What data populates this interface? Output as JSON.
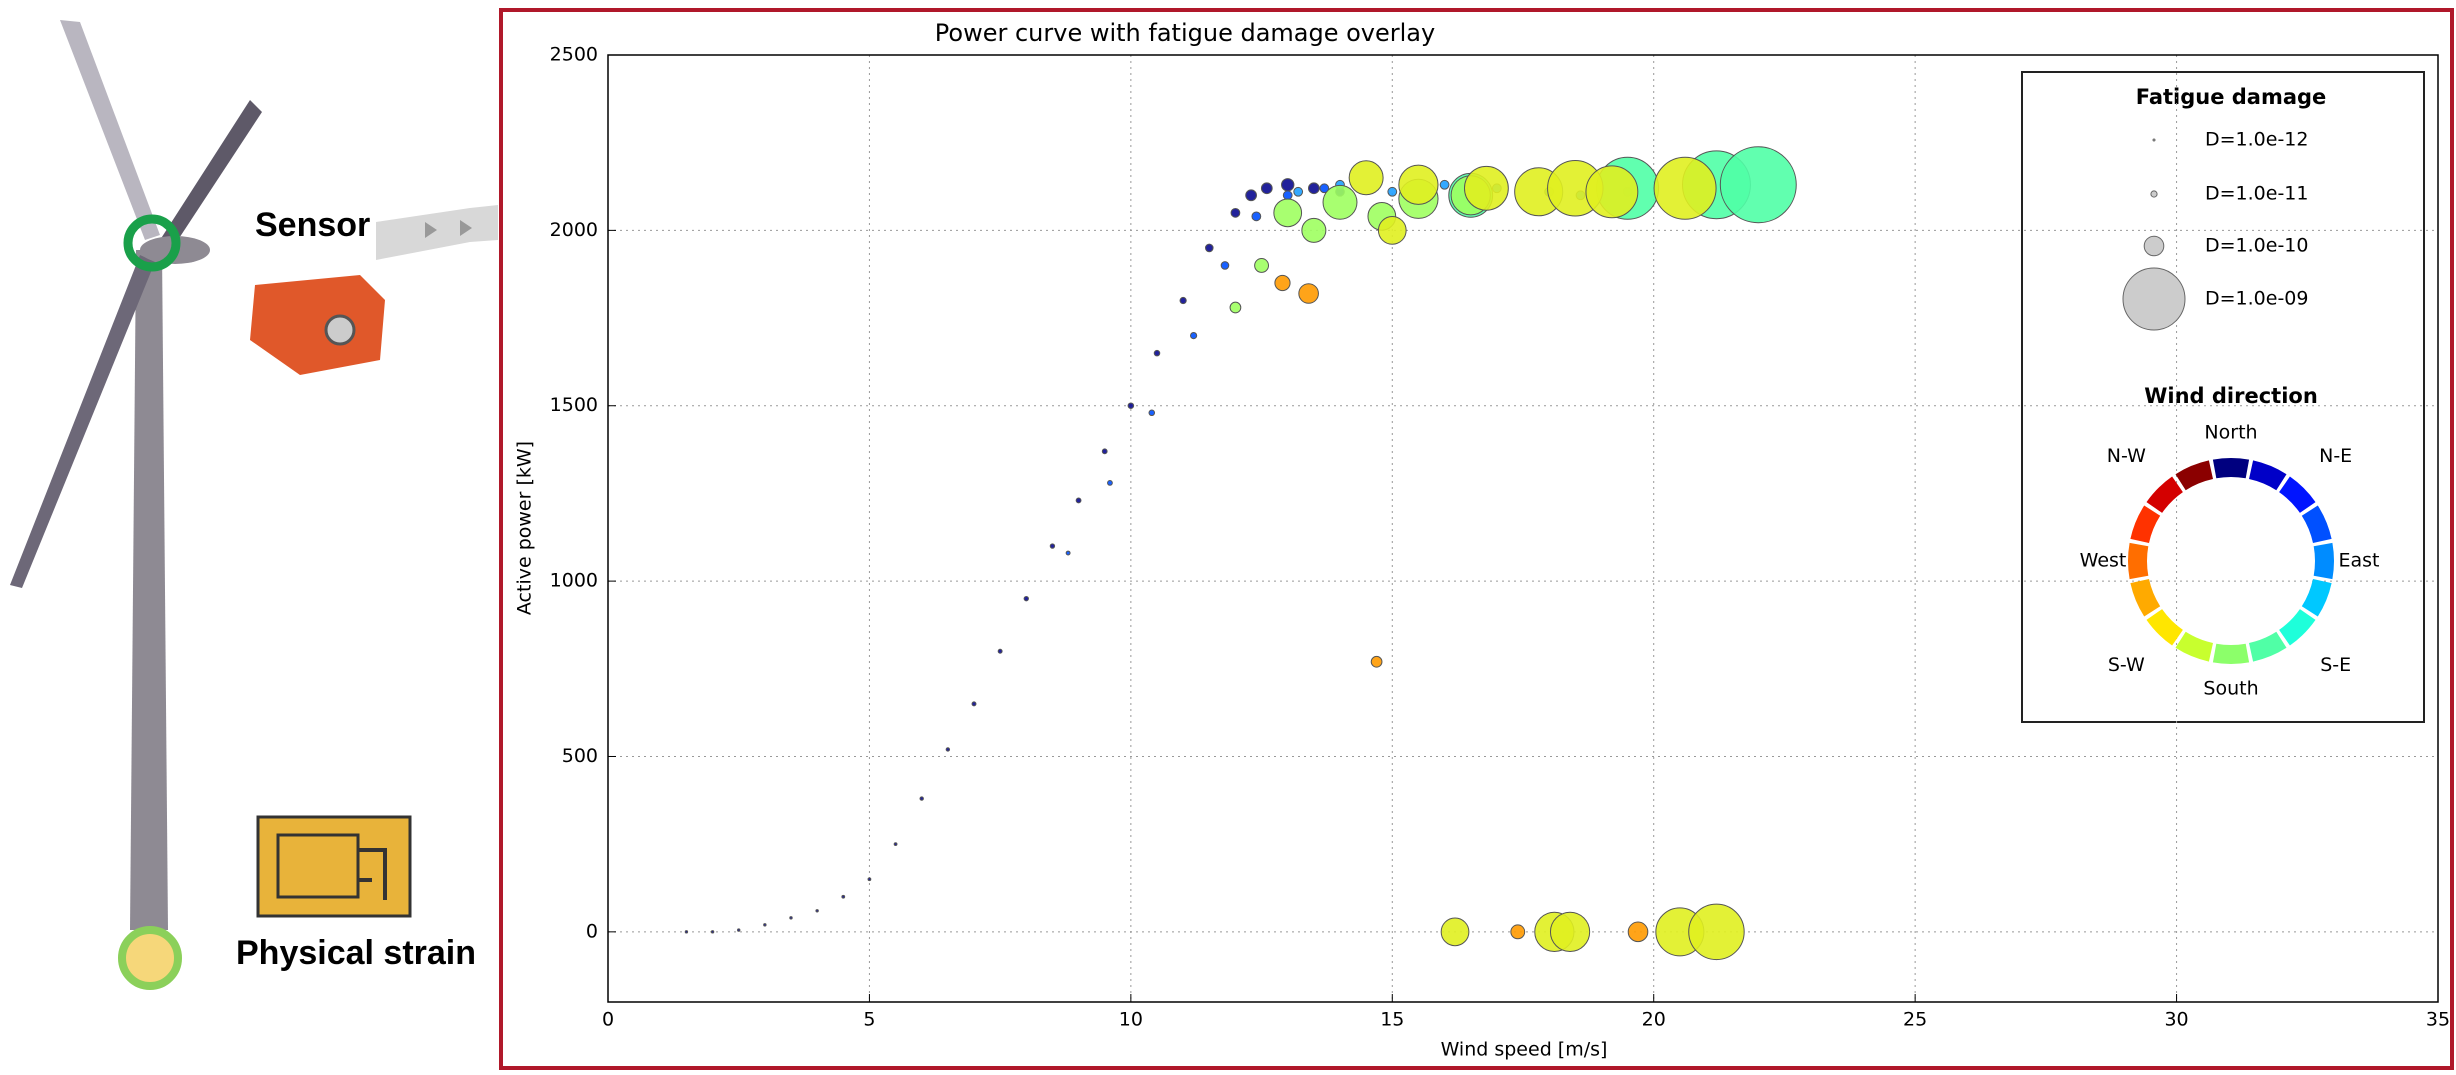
{
  "illustration": {
    "sensor_label": "Sensor",
    "strain_label": "Physical strain"
  },
  "chart_data": {
    "type": "scatter",
    "title": "Power curve with fatigue damage overlay",
    "x_label": "Wind speed [m/s]",
    "y_label": "Active power [kW]",
    "xlim": [
      0,
      35
    ],
    "ylim": [
      -200,
      2500
    ],
    "xticks": [
      0,
      5,
      10,
      15,
      20,
      25,
      30,
      35
    ],
    "yticks": [
      0,
      500,
      1000,
      1500,
      2000,
      2500
    ],
    "grid": true,
    "size_legend": {
      "title": "Fatigue damage",
      "entries": [
        {
          "value": 1e-12,
          "label": "D=1.0e-12"
        },
        {
          "value": 1e-11,
          "label": "D=1.0e-11"
        },
        {
          "value": 1e-10,
          "label": "D=1.0e-10"
        },
        {
          "value": 1e-09,
          "label": "D=1.0e-09"
        }
      ]
    },
    "direction_legend": {
      "title": "Wind direction",
      "colors": [
        "#00007f",
        "#0000c8",
        "#0014ff",
        "#0050ff",
        "#008cff",
        "#00c8ff",
        "#1effda",
        "#50ffa6",
        "#8cff6a",
        "#c8ff2e",
        "#ffe600",
        "#ffaa00",
        "#ff6e00",
        "#ff3200",
        "#d40000",
        "#8b0000"
      ]
    },
    "series": [
      {
        "name": "North",
        "color": "#0a0a90",
        "x": [
          1.5,
          2,
          2.5,
          3,
          3.5,
          4,
          4.5,
          5,
          5.5,
          6,
          6.5,
          7,
          7.5,
          8,
          8.5,
          9,
          9.5,
          10,
          10.5,
          11,
          11.5,
          12,
          12.3,
          12.6,
          13,
          13.5,
          14
        ],
        "values": [
          0,
          0,
          5,
          20,
          40,
          60,
          100,
          150,
          250,
          380,
          520,
          650,
          800,
          950,
          1100,
          1230,
          1370,
          1500,
          1650,
          1800,
          1950,
          2050,
          2100,
          2120,
          2130,
          2120,
          2110
        ],
        "sizes": [
          1e-12,
          1e-12,
          1e-12,
          1e-12,
          1e-12,
          1e-12,
          2e-12,
          2e-12,
          2e-12,
          3e-12,
          3e-12,
          4e-12,
          4e-12,
          5e-12,
          5e-12,
          6e-12,
          6e-12,
          8e-12,
          8e-12,
          1e-11,
          1.5e-11,
          2e-11,
          3e-11,
          3e-11,
          4e-11,
          3e-11,
          2e-11
        ]
      },
      {
        "name": "N-E",
        "color": "#0050ff",
        "x": [
          8.8,
          9.6,
          10.4,
          11.2,
          11.8,
          12.4,
          13,
          13.7
        ],
        "values": [
          1080,
          1280,
          1480,
          1700,
          1900,
          2040,
          2100,
          2120
        ],
        "sizes": [
          4e-12,
          6e-12,
          8e-12,
          1e-11,
          1.5e-11,
          2e-11,
          2e-11,
          2e-11
        ]
      },
      {
        "name": "East",
        "color": "#1ea0ff",
        "x": [
          13.2,
          14,
          15,
          16,
          17,
          18,
          18.6,
          19.5
        ],
        "values": [
          2110,
          2130,
          2110,
          2130,
          2120,
          2110,
          2100,
          2110
        ],
        "sizes": [
          2e-11,
          2e-11,
          2e-11,
          2e-11,
          2e-11,
          2e-11,
          2e-11,
          2e-11
        ]
      },
      {
        "name": "S-E",
        "color": "#50ffa6",
        "x": [
          16.5,
          19.5,
          21.2,
          22
        ],
        "values": [
          2100,
          2120,
          2130,
          2130
        ],
        "sizes": [
          5e-10,
          1e-09,
          1.2e-09,
          1.5e-09
        ]
      },
      {
        "name": "South",
        "color": "#9fff60",
        "x": [
          12,
          12.5,
          13,
          13.5,
          14,
          14.8,
          15.5,
          16.5
        ],
        "values": [
          1780,
          1900,
          2050,
          2000,
          2080,
          2040,
          2090,
          2100
        ],
        "sizes": [
          3e-11,
          5e-11,
          2e-10,
          1.5e-10,
          3e-10,
          2e-10,
          4e-10,
          4e-10
        ]
      },
      {
        "name": "S-W",
        "color": "#e0f020",
        "x": [
          14.5,
          15.5,
          16.8,
          17.8,
          18.5,
          19.2,
          20.6,
          15,
          16.2,
          18.1,
          18.4,
          20.5,
          21.2
        ],
        "values": [
          2150,
          2130,
          2120,
          2110,
          2120,
          2110,
          2120,
          2000,
          0,
          0,
          0,
          0,
          0
        ],
        "sizes": [
          3e-10,
          4e-10,
          5e-10,
          6e-10,
          8e-10,
          7e-10,
          1e-09,
          2e-10,
          2e-10,
          4e-10,
          4e-10,
          6e-10,
          8e-10
        ]
      },
      {
        "name": "West",
        "color": "#ff9a00",
        "x": [
          17.4,
          19.7,
          14.7,
          13.4,
          12.9
        ],
        "values": [
          0,
          0,
          770,
          1820,
          1850
        ],
        "sizes": [
          5e-11,
          1e-10,
          3e-11,
          1e-10,
          6e-11
        ]
      },
      {
        "name": "N-W",
        "color": "#8b0000",
        "x": [],
        "values": [],
        "sizes": []
      }
    ]
  }
}
